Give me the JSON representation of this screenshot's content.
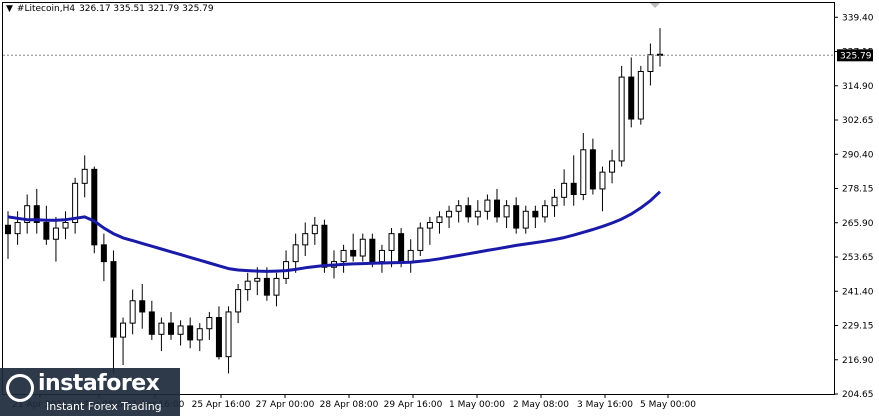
{
  "header": {
    "marker": "▼",
    "symbol": "#Litecoin,H4",
    "values": "326.17 335.51 321.79 325.79"
  },
  "logo": {
    "name": "instaforex",
    "tagline": "Instant Forex Trading"
  },
  "colors": {
    "background": "#ffffff",
    "candle_up": "#ffffff",
    "candle_down": "#000000",
    "ma_line": "#1a1aa8",
    "price_tag_bg": "#000000",
    "price_tag_text": "#ffffff"
  },
  "chart_data": {
    "type": "candlestick",
    "symbol": "#Litecoin",
    "timeframe": "H4",
    "current_price": "325.79",
    "ylim": [
      204.65,
      344.5
    ],
    "y_ticks": [
      "339.40",
      "327.15",
      "314.90",
      "302.65",
      "290.40",
      "278.15",
      "265.90",
      "253.65",
      "241.40",
      "229.15",
      "216.90",
      "204.65"
    ],
    "x_ticks": [
      "21 Apr 2021",
      "22 Apr 08:00",
      "23 Apr 16:00",
      "25 Apr 16:00",
      "27 Apr 00:00",
      "28 Apr 08:00",
      "29 Apr 16:00",
      "1 May 00:00",
      "2 May 08:00",
      "3 May 16:00",
      "5 May 00:00"
    ],
    "grid": false,
    "candles": [
      {
        "o": 265,
        "h": 270,
        "l": 253,
        "c": 262
      },
      {
        "o": 262,
        "h": 270,
        "l": 258,
        "c": 266
      },
      {
        "o": 266,
        "h": 276,
        "l": 262,
        "c": 272
      },
      {
        "o": 272,
        "h": 278,
        "l": 262,
        "c": 266
      },
      {
        "o": 266,
        "h": 272,
        "l": 258,
        "c": 260
      },
      {
        "o": 260,
        "h": 268,
        "l": 252,
        "c": 264
      },
      {
        "o": 264,
        "h": 270,
        "l": 260,
        "c": 266
      },
      {
        "o": 266,
        "h": 282,
        "l": 262,
        "c": 280
      },
      {
        "o": 280,
        "h": 290,
        "l": 275,
        "c": 285
      },
      {
        "o": 285,
        "h": 286,
        "l": 255,
        "c": 258
      },
      {
        "o": 258,
        "h": 262,
        "l": 245,
        "c": 252
      },
      {
        "o": 252,
        "h": 256,
        "l": 212,
        "c": 225
      },
      {
        "o": 225,
        "h": 232,
        "l": 215,
        "c": 230
      },
      {
        "o": 230,
        "h": 242,
        "l": 226,
        "c": 238
      },
      {
        "o": 238,
        "h": 244,
        "l": 228,
        "c": 234
      },
      {
        "o": 234,
        "h": 238,
        "l": 224,
        "c": 226
      },
      {
        "o": 226,
        "h": 232,
        "l": 220,
        "c": 230
      },
      {
        "o": 230,
        "h": 234,
        "l": 224,
        "c": 226
      },
      {
        "o": 226,
        "h": 231,
        "l": 222,
        "c": 229
      },
      {
        "o": 229,
        "h": 232,
        "l": 221,
        "c": 224
      },
      {
        "o": 224,
        "h": 230,
        "l": 220,
        "c": 228
      },
      {
        "o": 228,
        "h": 234,
        "l": 224,
        "c": 232
      },
      {
        "o": 232,
        "h": 236,
        "l": 217,
        "c": 218
      },
      {
        "o": 218,
        "h": 236,
        "l": 212,
        "c": 234
      },
      {
        "o": 234,
        "h": 244,
        "l": 230,
        "c": 242
      },
      {
        "o": 242,
        "h": 248,
        "l": 238,
        "c": 245
      },
      {
        "o": 245,
        "h": 250,
        "l": 240,
        "c": 246
      },
      {
        "o": 246,
        "h": 250,
        "l": 238,
        "c": 240
      },
      {
        "o": 240,
        "h": 248,
        "l": 236,
        "c": 246
      },
      {
        "o": 246,
        "h": 256,
        "l": 244,
        "c": 252
      },
      {
        "o": 252,
        "h": 262,
        "l": 248,
        "c": 258
      },
      {
        "o": 258,
        "h": 266,
        "l": 254,
        "c": 262
      },
      {
        "o": 262,
        "h": 268,
        "l": 258,
        "c": 265
      },
      {
        "o": 265,
        "h": 267,
        "l": 248,
        "c": 250
      },
      {
        "o": 250,
        "h": 256,
        "l": 246,
        "c": 252
      },
      {
        "o": 252,
        "h": 258,
        "l": 248,
        "c": 256
      },
      {
        "o": 256,
        "h": 262,
        "l": 252,
        "c": 254
      },
      {
        "o": 254,
        "h": 262,
        "l": 252,
        "c": 260
      },
      {
        "o": 260,
        "h": 262,
        "l": 250,
        "c": 252
      },
      {
        "o": 252,
        "h": 258,
        "l": 248,
        "c": 256
      },
      {
        "o": 256,
        "h": 264,
        "l": 250,
        "c": 262
      },
      {
        "o": 262,
        "h": 264,
        "l": 250,
        "c": 252
      },
      {
        "o": 252,
        "h": 260,
        "l": 248,
        "c": 256
      },
      {
        "o": 256,
        "h": 266,
        "l": 254,
        "c": 264
      },
      {
        "o": 264,
        "h": 268,
        "l": 258,
        "c": 266
      },
      {
        "o": 266,
        "h": 270,
        "l": 262,
        "c": 268
      },
      {
        "o": 268,
        "h": 272,
        "l": 264,
        "c": 270
      },
      {
        "o": 270,
        "h": 274,
        "l": 266,
        "c": 272
      },
      {
        "o": 272,
        "h": 275,
        "l": 266,
        "c": 268
      },
      {
        "o": 268,
        "h": 274,
        "l": 265,
        "c": 270
      },
      {
        "o": 270,
        "h": 276,
        "l": 267,
        "c": 274
      },
      {
        "o": 274,
        "h": 278,
        "l": 266,
        "c": 268
      },
      {
        "o": 268,
        "h": 274,
        "l": 264,
        "c": 272
      },
      {
        "o": 272,
        "h": 275,
        "l": 262,
        "c": 264
      },
      {
        "o": 264,
        "h": 272,
        "l": 262,
        "c": 270
      },
      {
        "o": 270,
        "h": 272,
        "l": 264,
        "c": 268
      },
      {
        "o": 268,
        "h": 274,
        "l": 266,
        "c": 272
      },
      {
        "o": 272,
        "h": 278,
        "l": 268,
        "c": 275
      },
      {
        "o": 275,
        "h": 285,
        "l": 272,
        "c": 280
      },
      {
        "o": 280,
        "h": 290,
        "l": 272,
        "c": 276
      },
      {
        "o": 276,
        "h": 298,
        "l": 274,
        "c": 292
      },
      {
        "o": 292,
        "h": 296,
        "l": 276,
        "c": 278
      },
      {
        "o": 278,
        "h": 286,
        "l": 270,
        "c": 284
      },
      {
        "o": 284,
        "h": 292,
        "l": 280,
        "c": 288
      },
      {
        "o": 288,
        "h": 322,
        "l": 286,
        "c": 318
      },
      {
        "o": 318,
        "h": 325,
        "l": 300,
        "c": 303
      },
      {
        "o": 303,
        "h": 322,
        "l": 301,
        "c": 320
      },
      {
        "o": 320,
        "h": 330,
        "l": 315,
        "c": 326
      },
      {
        "o": 326.17,
        "h": 335.51,
        "l": 321.79,
        "c": 325.79
      }
    ],
    "ma_series": [
      268,
      267.5,
      267,
      267,
      266.8,
      266.8,
      267,
      267.5,
      268,
      266.5,
      264,
      262,
      260.5,
      259.5,
      258.5,
      257.5,
      256.5,
      255.5,
      254.5,
      253.5,
      252.5,
      251.5,
      250.5,
      249.5,
      249,
      248.8,
      248.6,
      248.5,
      248.6,
      248.8,
      249.2,
      249.8,
      250.2,
      250.6,
      250.8,
      251,
      251.2,
      251.3,
      251.4,
      251.5,
      251.6,
      251.7,
      251.8,
      252.1,
      252.5,
      253,
      253.6,
      254.2,
      254.8,
      255.4,
      256,
      256.6,
      257.2,
      257.8,
      258.3,
      258.8,
      259.3,
      259.9,
      260.6,
      261.5,
      262.5,
      263.5,
      264.6,
      265.8,
      267.2,
      269,
      271.2,
      273.8,
      277
    ]
  }
}
